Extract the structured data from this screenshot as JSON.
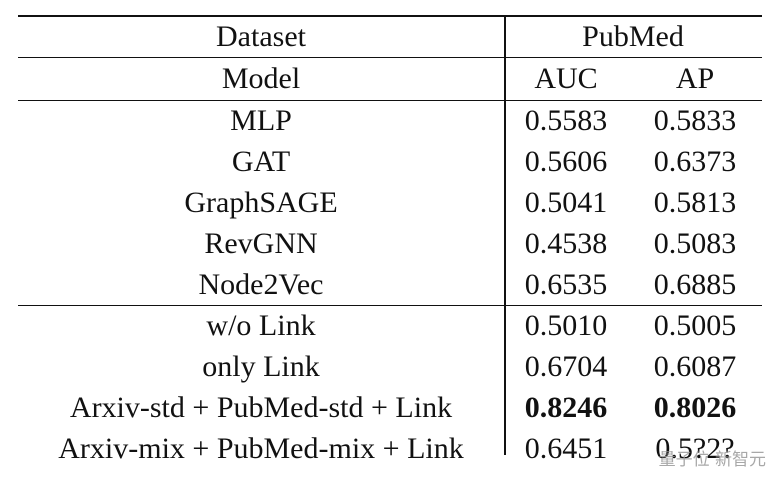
{
  "header": {
    "dataset_label": "Dataset",
    "dataset_name": "PubMed",
    "model_label": "Model",
    "auc_label": "AUC",
    "ap_label": "AP"
  },
  "groups": [
    [
      {
        "model": "MLP",
        "auc": "0.5583",
        "ap": "0.5833",
        "bold": false
      },
      {
        "model": "GAT",
        "auc": "0.5606",
        "ap": "0.6373",
        "bold": false
      },
      {
        "model": "GraphSAGE",
        "auc": "0.5041",
        "ap": "0.5813",
        "bold": false
      },
      {
        "model": "RevGNN",
        "auc": "0.4538",
        "ap": "0.5083",
        "bold": false
      },
      {
        "model": "Node2Vec",
        "auc": "0.6535",
        "ap": "0.6885",
        "bold": false
      }
    ],
    [
      {
        "model": "w/o Link",
        "auc": "0.5010",
        "ap": "0.5005",
        "bold": false
      },
      {
        "model": "only Link",
        "auc": "0.6704",
        "ap": "0.6087",
        "bold": false
      },
      {
        "model": "Arxiv-std + PubMed-std + Link",
        "auc": "0.8246",
        "ap": "0.8026",
        "bold": true
      },
      {
        "model": "Arxiv-mix + PubMed-mix + Link",
        "auc": "0.6451",
        "ap": "0.5?2?",
        "bold": false
      }
    ]
  ],
  "watermark": "量子位 新智元"
}
